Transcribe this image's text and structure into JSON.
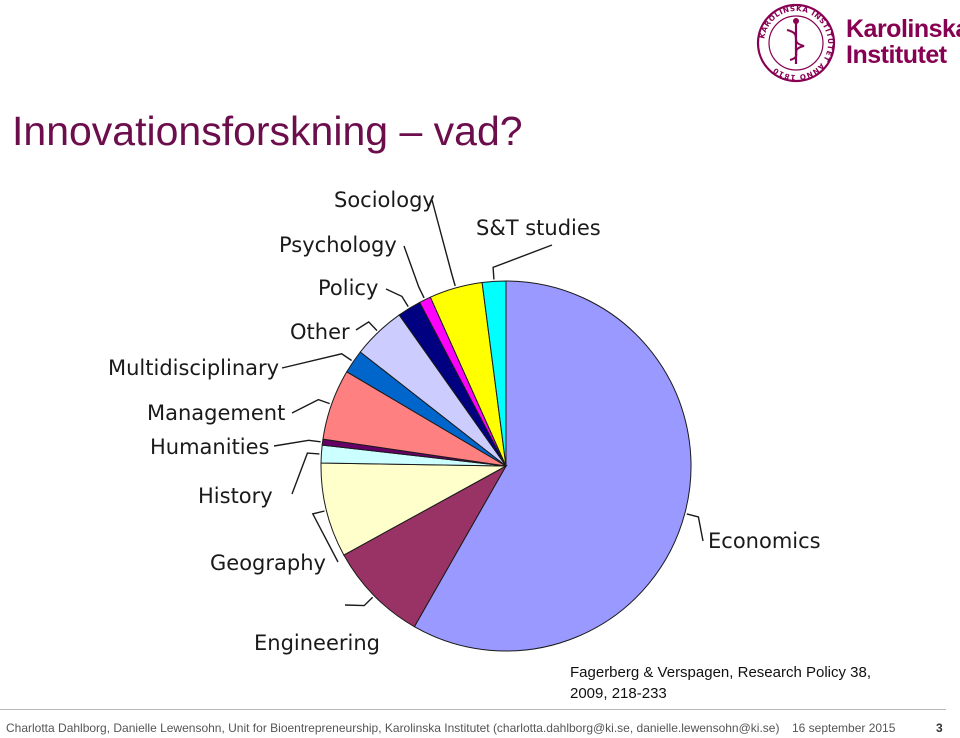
{
  "logo": {
    "seal_text": "KAROLINSKA INSTITUTET ANNO 1810",
    "word_line1": "Karolinska",
    "word_line2": "Institutet",
    "color": "#870052"
  },
  "slide": {
    "title": "Innovationsforskning – vad?",
    "citation_line1": "Fagerberg & Verspagen, Research Policy 38,",
    "citation_line2": "2009, 218-233"
  },
  "footer": {
    "authors": "Charlotta Dahlborg, Danielle Lewensohn, Unit for Bioentrepreneurship, Karolinska Institutet (charlotta.dahlborg@ki.se, danielle.lewensohn@ki.se)",
    "date": "16 september 2015",
    "page": "3"
  },
  "chart_data": {
    "type": "pie",
    "title": "",
    "slices": [
      {
        "label": "Economics",
        "value": 56.5,
        "color": "#9999ff"
      },
      {
        "label": "Engineering",
        "value": 8.5,
        "color": "#993366"
      },
      {
        "label": "Geography",
        "value": 8.0,
        "color": "#ffffcc"
      },
      {
        "label": "History",
        "value": 1.5,
        "color": "#ccffff"
      },
      {
        "label": "Humanities",
        "value": 0.5,
        "color": "#660066"
      },
      {
        "label": "Management",
        "value": 6.0,
        "color": "#ff8080"
      },
      {
        "label": "Multidisciplinary",
        "value": 2.0,
        "color": "#0066cc"
      },
      {
        "label": "Other",
        "value": 4.5,
        "color": "#ccccff"
      },
      {
        "label": "Policy",
        "value": 2.0,
        "color": "#000080"
      },
      {
        "label": "Psychology",
        "value": 1.0,
        "color": "#ff00ff"
      },
      {
        "label": "Sociology",
        "value": 4.5,
        "color": "#ffff00"
      },
      {
        "label": "S&T studies",
        "value": 2.0,
        "color": "#00ffff"
      }
    ]
  }
}
